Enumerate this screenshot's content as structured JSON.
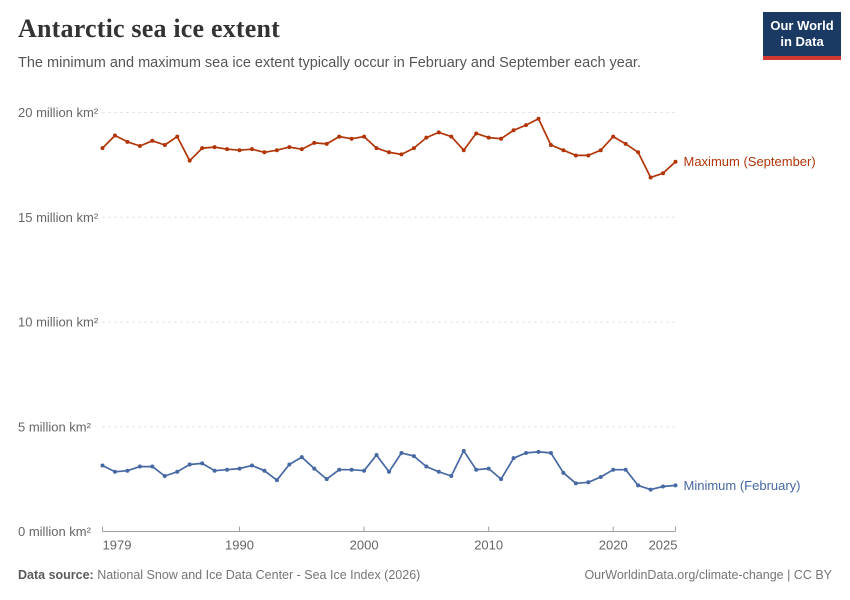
{
  "header": {
    "title": "Antarctic sea ice extent",
    "subtitle": "The minimum and maximum sea ice extent typically occur in February and September each year.",
    "logo": {
      "line1": "Our World",
      "line2": "in Data",
      "bg_color": "#1a3a63",
      "bar_color": "#d13832"
    }
  },
  "chart_data": {
    "type": "line",
    "title": "Antarctic sea ice extent",
    "xlabel": "",
    "ylabel": "million km²",
    "xlim": [
      1979,
      2025
    ],
    "ylim": [
      0,
      20
    ],
    "grid": "horizontal-dashed",
    "legend_position": "end-of-line",
    "x": [
      1979,
      1980,
      1981,
      1982,
      1983,
      1984,
      1985,
      1986,
      1987,
      1988,
      1989,
      1990,
      1991,
      1992,
      1993,
      1994,
      1995,
      1996,
      1997,
      1998,
      1999,
      2000,
      2001,
      2002,
      2003,
      2004,
      2005,
      2006,
      2007,
      2008,
      2009,
      2010,
      2011,
      2012,
      2013,
      2014,
      2015,
      2016,
      2017,
      2018,
      2019,
      2020,
      2021,
      2022,
      2023,
      2024,
      2025
    ],
    "series": [
      {
        "name": "Maximum (September)",
        "color": "#b13507",
        "values": [
          18.3,
          18.9,
          18.6,
          18.4,
          18.65,
          18.45,
          18.85,
          17.7,
          18.3,
          18.35,
          18.25,
          18.2,
          18.25,
          18.1,
          18.2,
          18.35,
          18.25,
          18.55,
          18.5,
          18.85,
          18.75,
          18.85,
          18.3,
          18.1,
          18.0,
          18.3,
          18.8,
          19.05,
          18.85,
          18.2,
          19.0,
          18.8,
          18.75,
          19.15,
          19.4,
          19.7,
          18.45,
          18.2,
          17.95,
          17.95,
          18.2,
          18.85,
          18.5,
          18.1,
          16.9,
          17.1,
          17.65
        ]
      },
      {
        "name": "Minimum (February)",
        "color": "#4668a3",
        "values": [
          3.15,
          2.85,
          2.9,
          3.1,
          3.1,
          2.65,
          2.85,
          3.2,
          3.25,
          2.9,
          2.95,
          3.0,
          3.15,
          2.9,
          2.45,
          3.2,
          3.55,
          3.0,
          2.5,
          2.95,
          2.95,
          2.9,
          3.65,
          2.85,
          3.75,
          3.6,
          3.1,
          2.85,
          2.65,
          3.85,
          2.95,
          3.0,
          2.5,
          3.5,
          3.75,
          3.8,
          3.75,
          2.8,
          2.3,
          2.35,
          2.6,
          2.95,
          2.95,
          2.2,
          2.0,
          2.15,
          2.2
        ]
      }
    ],
    "yticks": [
      {
        "value": 0,
        "label": "0 million km²"
      },
      {
        "value": 5,
        "label": "5 million km²"
      },
      {
        "value": 10,
        "label": "10 million km²"
      },
      {
        "value": 15,
        "label": "15 million km²"
      },
      {
        "value": 20,
        "label": "20 million km²"
      }
    ],
    "xticks": [
      {
        "value": 1979,
        "label": "1979"
      },
      {
        "value": 1990,
        "label": "1990"
      },
      {
        "value": 2000,
        "label": "2000"
      },
      {
        "value": 2010,
        "label": "2010"
      },
      {
        "value": 2020,
        "label": "2020"
      },
      {
        "value": 2025,
        "label": "2025"
      }
    ],
    "colors": {
      "grid": "#d9d9d9",
      "axis": "#a0a0a0",
      "tick_label": "#666666"
    }
  },
  "footer": {
    "source_label": "Data source:",
    "source_text": " National Snow and Ice Data Center - Sea Ice Index (2026)",
    "credit": "OurWorldinData.org/climate-change | CC BY"
  }
}
